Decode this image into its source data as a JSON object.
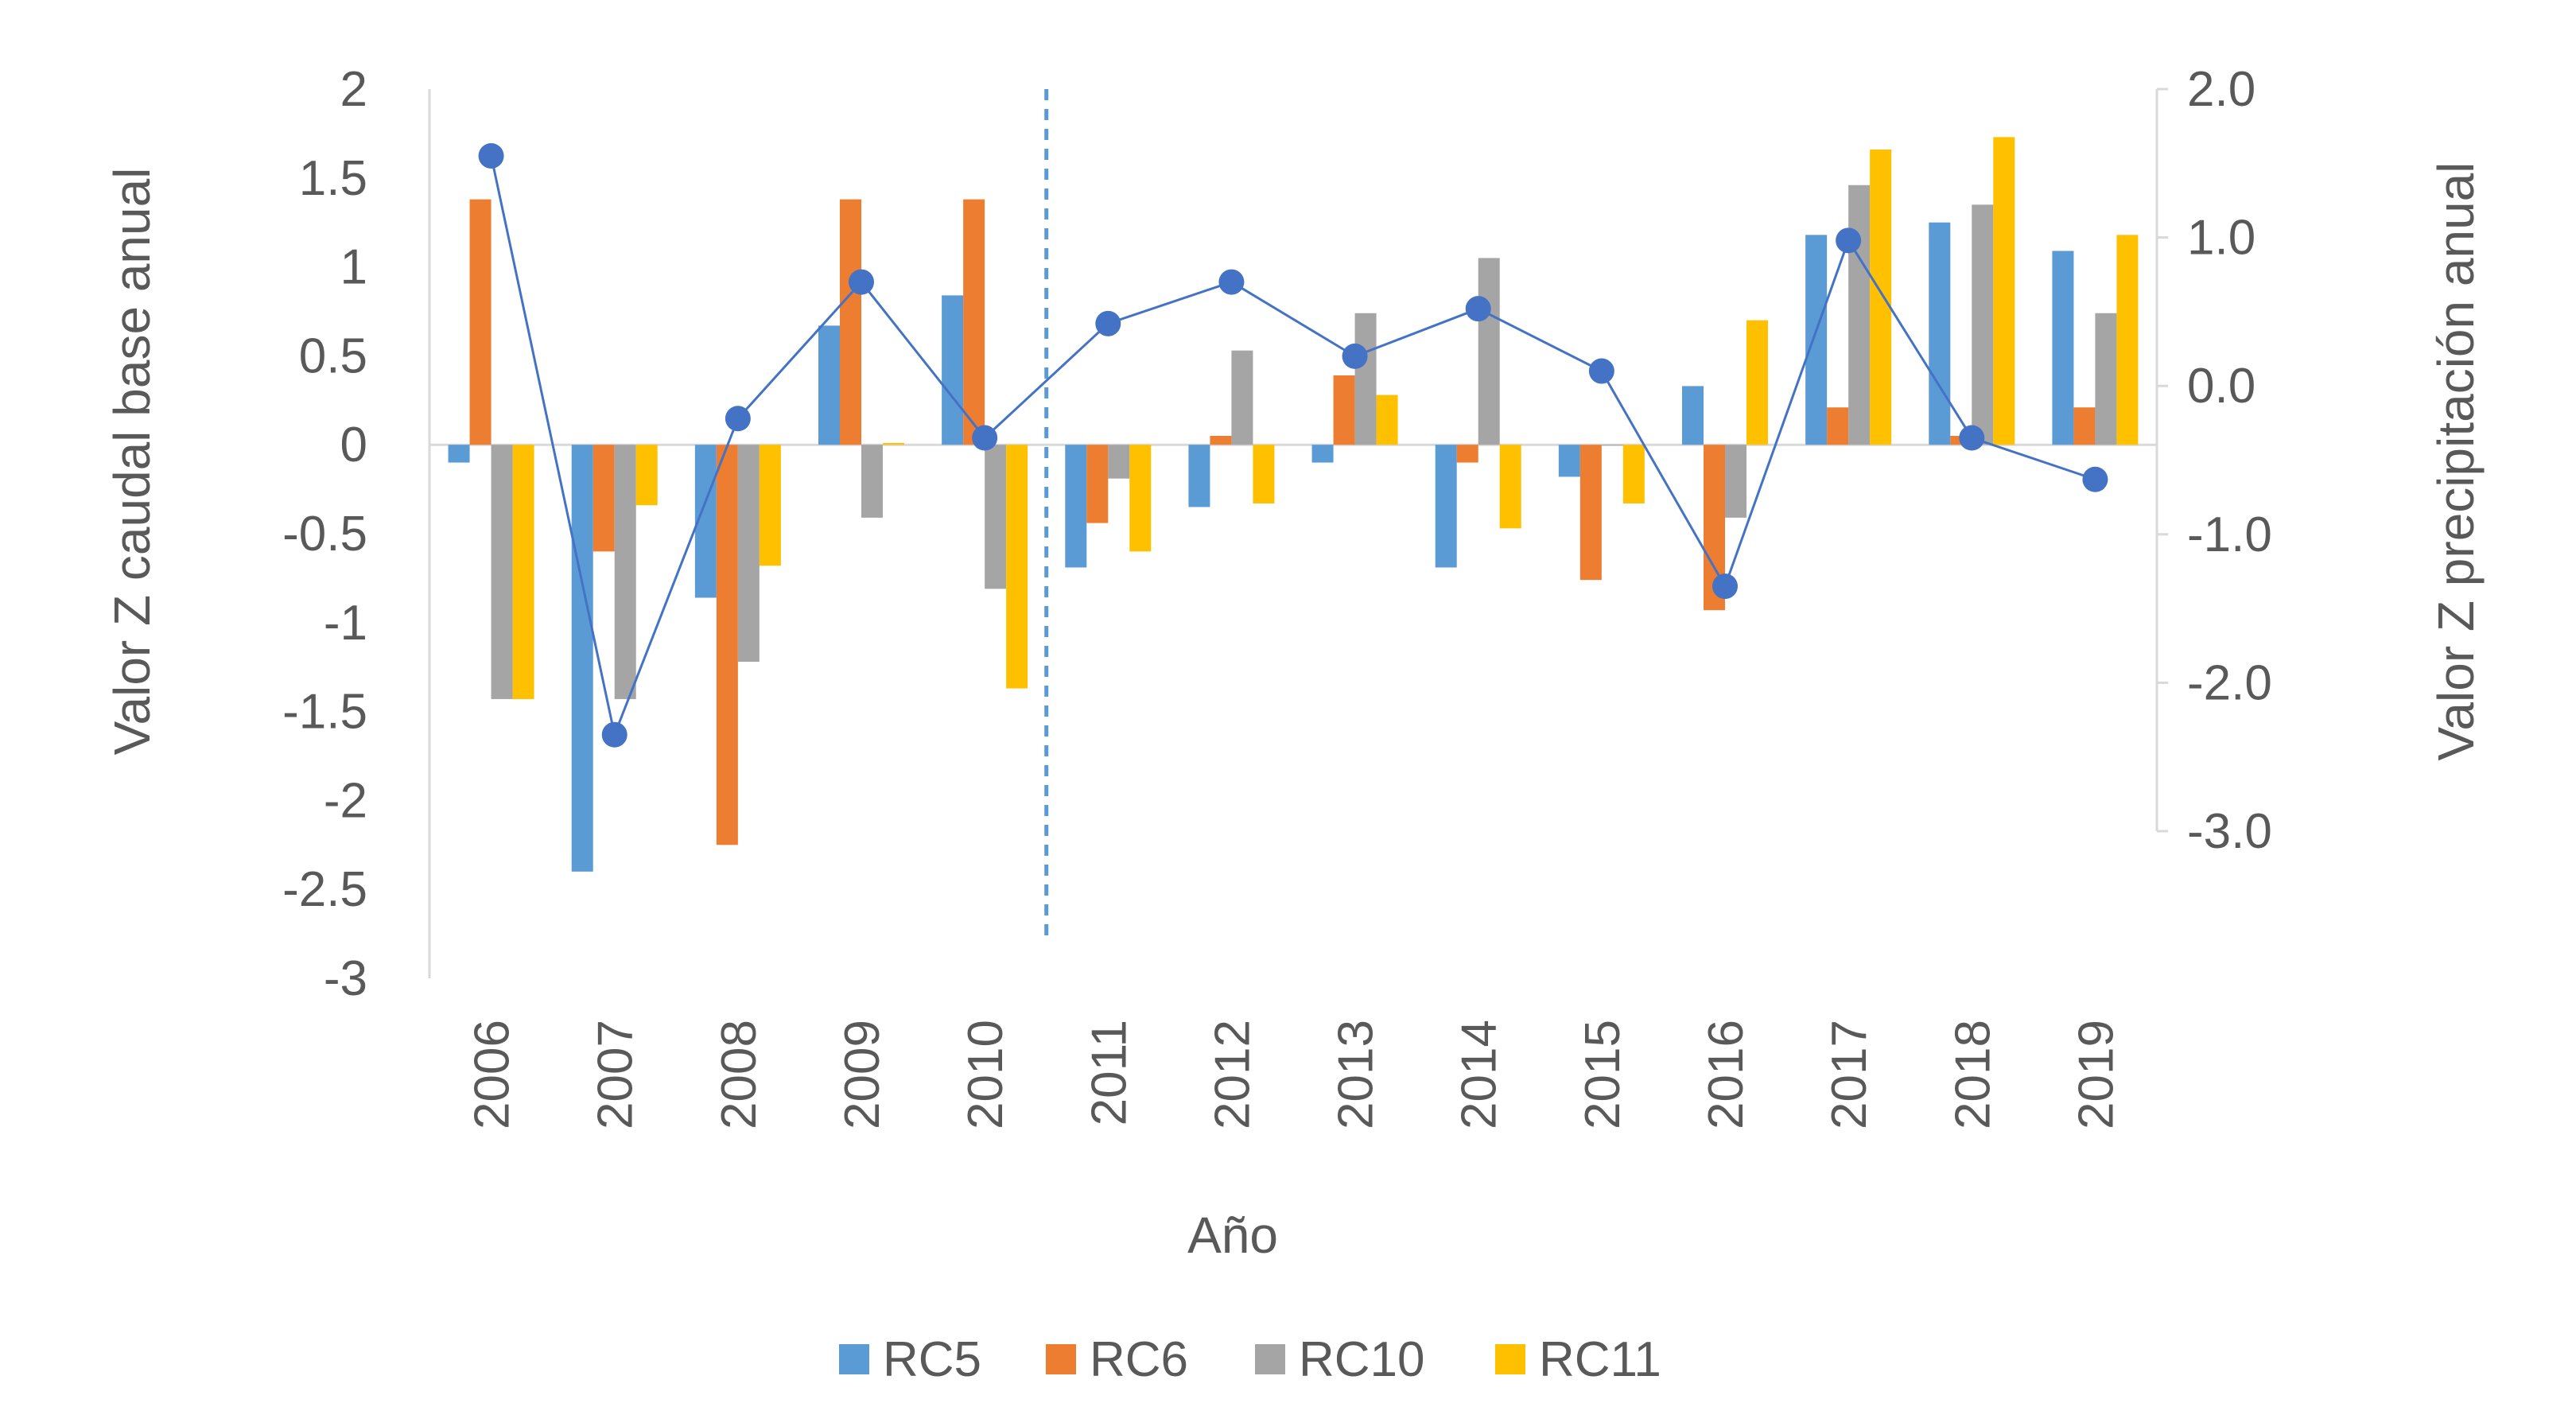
{
  "chart_data": {
    "type": "bar",
    "categories": [
      "2006",
      "2007",
      "2008",
      "2009",
      "2010",
      "2011",
      "2012",
      "2013",
      "2014",
      "2015",
      "2016",
      "2017",
      "2018",
      "2019"
    ],
    "series": [
      {
        "name": "RC5",
        "axis": "left",
        "color": "#5B9BD5",
        "values": [
          -0.1,
          -2.4,
          -0.86,
          0.67,
          0.84,
          -0.69,
          -0.35,
          -0.1,
          -0.69,
          -0.18,
          0.33,
          1.18,
          1.25,
          1.09
        ]
      },
      {
        "name": "RC6",
        "axis": "left",
        "color": "#ED7D31",
        "values": [
          1.38,
          -0.6,
          -2.25,
          1.38,
          1.38,
          -0.44,
          0.05,
          0.39,
          -0.1,
          -0.76,
          -0.93,
          0.21,
          0.05,
          0.21
        ]
      },
      {
        "name": "RC10",
        "axis": "left",
        "color": "#A5A5A5",
        "values": [
          -1.43,
          -1.43,
          -1.22,
          -0.41,
          -0.81,
          -0.19,
          0.53,
          0.74,
          1.05,
          0.0,
          -0.41,
          1.46,
          1.35,
          0.74
        ]
      },
      {
        "name": "RC11",
        "axis": "left",
        "color": "#FFC000",
        "values": [
          -1.43,
          -0.34,
          -0.68,
          0.01,
          -1.37,
          -0.6,
          -0.33,
          0.28,
          -0.47,
          -0.33,
          0.7,
          1.66,
          1.73,
          1.18
        ]
      }
    ],
    "line_series": {
      "axis": "right",
      "color": "#4472C4",
      "values": [
        1.55,
        -2.35,
        -0.22,
        0.7,
        -0.35,
        0.42,
        0.7,
        0.2,
        0.52,
        0.1,
        -1.35,
        0.98,
        -0.35,
        -0.63
      ]
    },
    "divider_between": [
      "2010",
      "2011"
    ],
    "divider_color": "#5B9BD5",
    "xlabel": "Año",
    "ylabel": "Valor Z caudal base anual",
    "y2label": "Valor Z precipitación anual",
    "ylim": [
      -3,
      2
    ],
    "yticks": [
      "2",
      "1.5",
      "1",
      "0.5",
      "0",
      "-0.5",
      "-1",
      "-1.5",
      "-2",
      "-2.5",
      "-3"
    ],
    "y2lim": [
      -3,
      2
    ],
    "y2ticks": [
      "2.0",
      "1.0",
      "0.0",
      "-1.0",
      "-2.0",
      "-3.0"
    ],
    "legend_position": "bottom",
    "grid": false
  }
}
